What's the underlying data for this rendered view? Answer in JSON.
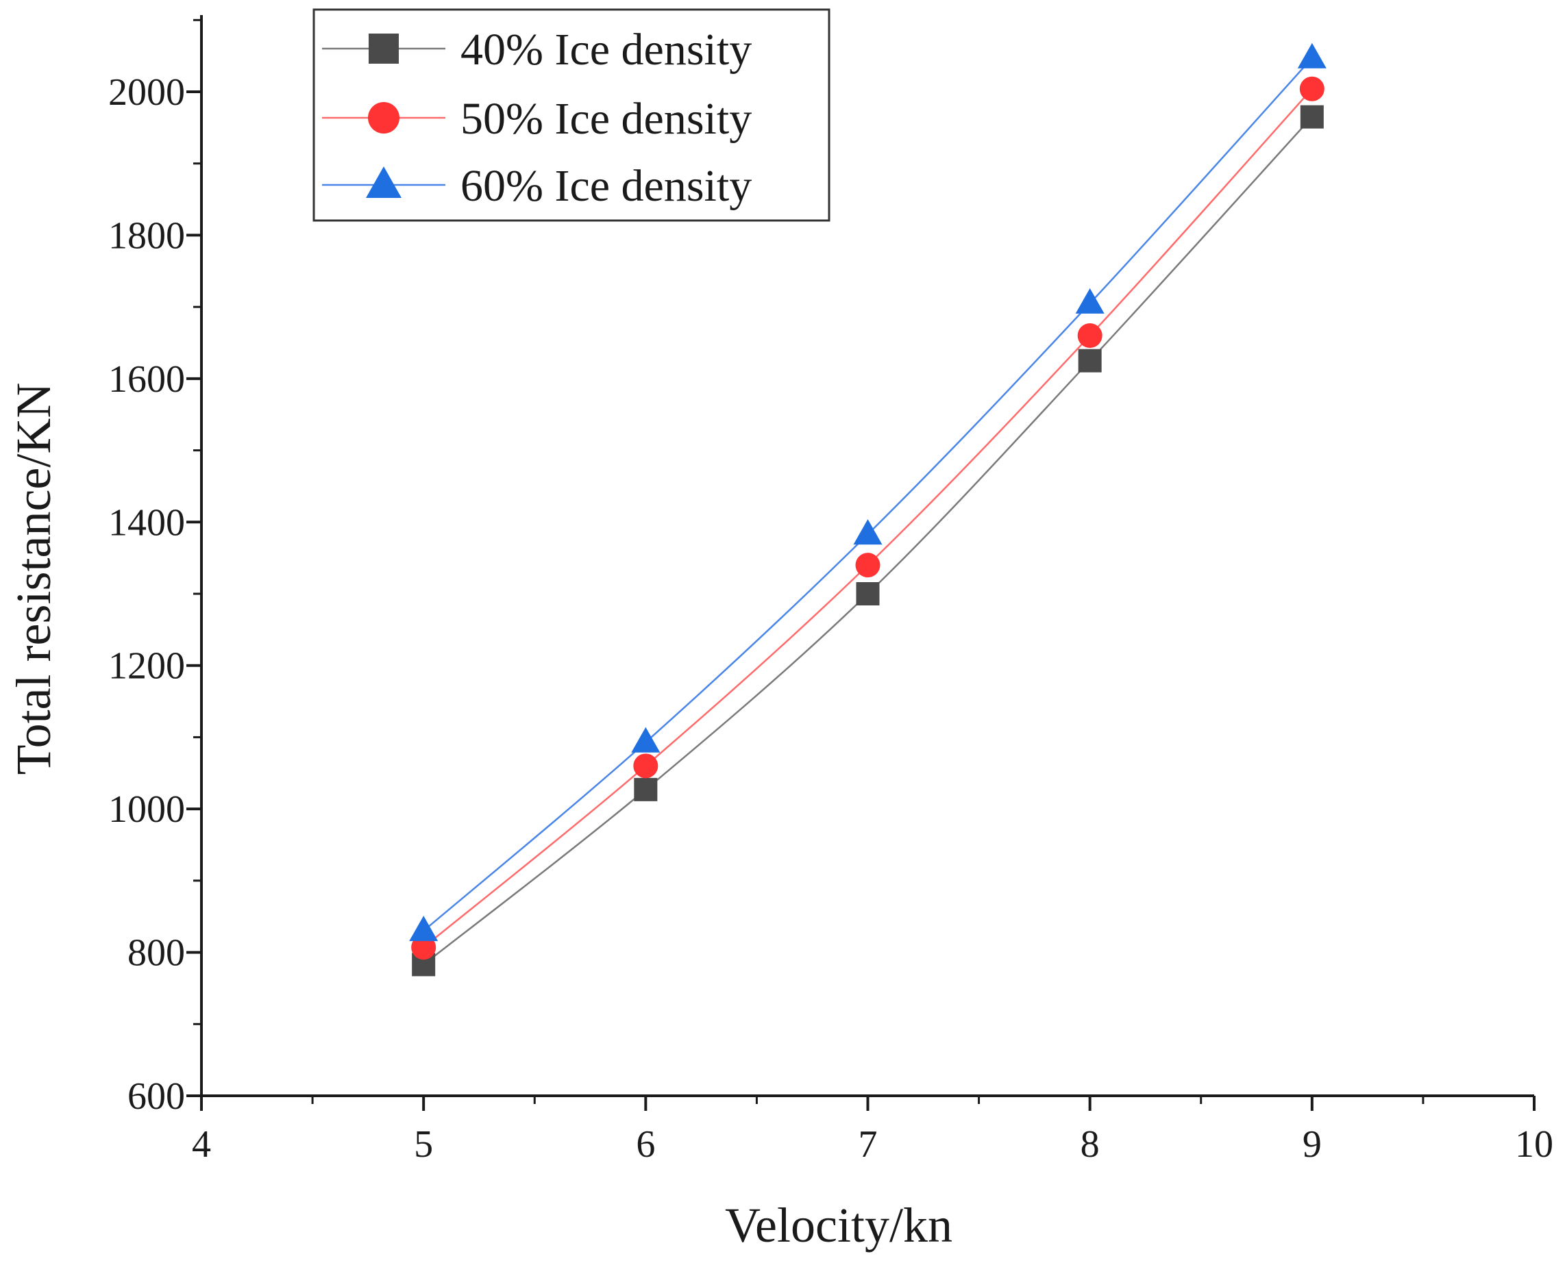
{
  "chart_data": {
    "type": "line",
    "title": "",
    "xlabel": "Velocity/kn",
    "ylabel": "Total resistance/KN",
    "xlim": [
      4,
      10
    ],
    "ylim": [
      600,
      2100
    ],
    "xticks": [
      4,
      5,
      6,
      7,
      8,
      9,
      10
    ],
    "xtick_labels": [
      "4",
      "5",
      "6",
      "7",
      "8",
      "9",
      "10"
    ],
    "yticks": [
      600,
      800,
      1000,
      1200,
      1400,
      1600,
      1800,
      2000
    ],
    "ytick_labels": [
      "600",
      "800",
      "1000",
      "1200",
      "1400",
      "1600",
      "1800",
      "2000"
    ],
    "grid": false,
    "legend_position": "top-left",
    "x": [
      5,
      6,
      7,
      8,
      9
    ],
    "series": [
      {
        "name": "40% Ice density",
        "marker": "square",
        "color": "#4a4a4a",
        "line_color": "#7a7a7a",
        "values": [
          783,
          1027,
          1300,
          1625,
          1965
        ]
      },
      {
        "name": "50% Ice density",
        "marker": "circle",
        "color": "#ff3333",
        "line_color": "#ff6b6b",
        "values": [
          807,
          1060,
          1340,
          1660,
          2004
        ]
      },
      {
        "name": "60% Ice density",
        "marker": "triangle",
        "color": "#1f6fe0",
        "line_color": "#4a86e8",
        "values": [
          830,
          1093,
          1383,
          1705,
          2047
        ]
      }
    ]
  }
}
